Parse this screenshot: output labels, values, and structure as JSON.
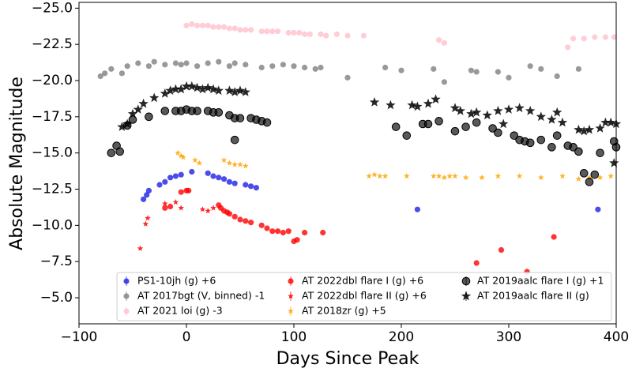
{
  "chart_data": {
    "type": "scatter",
    "x_label": "Days Since Peak",
    "y_label": "Absolute Magnitude",
    "xlim": [
      -100,
      400
    ],
    "ylim": [
      -25.4,
      -3.2
    ],
    "invert_y": true,
    "xticks": [
      {
        "value": -100,
        "label": "−100"
      },
      0,
      100,
      200,
      300,
      400
    ],
    "yticks": [
      {
        "value": -25,
        "label": "−25.0"
      },
      {
        "value": -22.5,
        "label": "−22.5"
      },
      {
        "value": -20,
        "label": "−20.0"
      },
      {
        "value": -17.5,
        "label": "−17.5"
      },
      {
        "value": -15,
        "label": "−15.0"
      },
      {
        "value": -12.5,
        "label": "−12.5"
      },
      {
        "value": -10,
        "label": "−10.0"
      },
      {
        "value": -7.5,
        "label": "−7.5"
      },
      {
        "value": -5,
        "label": "−5.0"
      }
    ],
    "legend": "lower center",
    "series": [
      {
        "name": "PS1-10jh (g) +6",
        "color": "#1f1fe6",
        "marker": "circle",
        "x": [
          -40,
          -37,
          -35,
          -25,
          -20,
          -15,
          -10,
          -5,
          5,
          20,
          25,
          30,
          35,
          40,
          45,
          55,
          60,
          65,
          215,
          383
        ],
        "values": [
          -11.8,
          -12.1,
          -12.4,
          -12.8,
          -13.0,
          -13.3,
          -13.4,
          -13.5,
          -13.7,
          -13.6,
          -13.4,
          -13.3,
          -13.2,
          -13.0,
          -12.9,
          -12.8,
          -12.7,
          -12.6,
          -11.1,
          -11.1
        ]
      },
      {
        "name": "AT 2017bgt (V, binned) -1",
        "color": "#808080",
        "marker": "circle",
        "x": [
          -80,
          -76,
          -70,
          -60,
          -55,
          -45,
          -35,
          -30,
          -20,
          -10,
          -5,
          0,
          10,
          20,
          30,
          40,
          45,
          55,
          70,
          80,
          90,
          100,
          110,
          120,
          125,
          150,
          185,
          200,
          230,
          240,
          265,
          270,
          290,
          300,
          320,
          330,
          345,
          365
        ],
        "values": [
          -20.3,
          -20.5,
          -20.8,
          -20.5,
          -21.0,
          -21.2,
          -21.0,
          -21.3,
          -21.1,
          -21.2,
          -21.1,
          -21.2,
          -21.0,
          -21.2,
          -21.3,
          -21.0,
          -21.2,
          -21.1,
          -20.9,
          -21.0,
          -21.1,
          -21.0,
          -20.9,
          -20.8,
          -20.9,
          -20.2,
          -20.9,
          -20.7,
          -20.8,
          -19.9,
          -20.7,
          -20.6,
          -20.6,
          -20.2,
          -21.0,
          -20.8,
          -20.3,
          -20.8
        ]
      },
      {
        "name": "AT 2021 loi (g) -3",
        "color": "#ffc0cb",
        "marker": "circle",
        "x": [
          0,
          5,
          10,
          15,
          20,
          25,
          30,
          35,
          40,
          45,
          50,
          55,
          60,
          70,
          75,
          80,
          85,
          95,
          100,
          105,
          110,
          115,
          125,
          130,
          140,
          150,
          165,
          235,
          240,
          355,
          360,
          370,
          380,
          390,
          398
        ],
        "values": [
          -23.8,
          -23.9,
          -23.8,
          -23.8,
          -23.8,
          -23.7,
          -23.7,
          -23.7,
          -23.6,
          -23.6,
          -23.5,
          -23.5,
          -23.5,
          -23.4,
          -23.4,
          -23.4,
          -23.4,
          -23.3,
          -23.3,
          -23.3,
          -23.2,
          -23.2,
          -23.2,
          -23.1,
          -23.2,
          -23.1,
          -23.1,
          -22.8,
          -22.6,
          -22.3,
          -22.9,
          -22.9,
          -23.0,
          -23.0,
          -23.0
        ]
      },
      {
        "name": "AT 2022dbl flare I (g) +6",
        "color": "#ff0000",
        "marker": "circle",
        "x": [
          -20,
          -15,
          -5,
          0,
          2,
          30,
          32,
          35,
          38,
          40,
          45,
          50,
          55,
          60,
          70,
          75,
          80,
          85,
          90,
          95,
          100,
          103,
          110,
          127,
          270,
          293,
          317,
          342
        ],
        "values": [
          -11.2,
          -11.3,
          -12.3,
          -12.4,
          -12.4,
          -11.4,
          -11.2,
          -11.0,
          -10.9,
          -10.8,
          -10.6,
          -10.4,
          -10.3,
          -10.2,
          -10.0,
          -9.8,
          -9.6,
          -9.6,
          -9.5,
          -9.6,
          -8.9,
          -9.0,
          -9.5,
          -9.5,
          -7.4,
          -8.3,
          -6.8,
          -9.2
        ]
      },
      {
        "name": "AT 2022dbl flare II (g) +6",
        "color": "#ff0000",
        "marker": "star-small",
        "x": [
          -43,
          -38,
          -36,
          -20,
          -10,
          -5,
          15,
          20,
          25
        ],
        "values": [
          -8.4,
          -10.1,
          -10.5,
          -11.5,
          -11.6,
          -11.2,
          -11.1,
          -11.0,
          -11.2
        ]
      },
      {
        "name": "AT 2018zr (g) +5",
        "color": "#ffa500",
        "marker": "star-small",
        "x": [
          -8,
          -5,
          -3,
          8,
          12,
          35,
          40,
          45,
          50,
          55,
          170,
          175,
          180,
          185,
          205,
          230,
          235,
          240,
          245,
          250,
          260,
          275,
          290,
          310,
          330,
          350,
          365,
          375,
          385,
          395
        ],
        "values": [
          -15.0,
          -14.8,
          -14.7,
          -14.5,
          -14.3,
          -14.5,
          -14.3,
          -14.2,
          -14.2,
          -14.1,
          -13.4,
          -13.5,
          -13.4,
          -13.4,
          -13.4,
          -13.4,
          -13.4,
          -13.3,
          -13.4,
          -13.4,
          -13.3,
          -13.3,
          -13.4,
          -13.4,
          -13.3,
          -13.4,
          -13.2,
          -13.3,
          -13.3,
          -13.4
        ]
      },
      {
        "name": "AT 2019aalc flare I (g) +1",
        "color": "#000000",
        "marker": "circle-large",
        "x": [
          -70,
          -65,
          -62,
          -55,
          -50,
          -35,
          -20,
          -10,
          -5,
          0,
          5,
          10,
          20,
          25,
          30,
          40,
          45,
          50,
          60,
          65,
          70,
          75,
          45,
          195,
          205,
          220,
          225,
          235,
          250,
          260,
          270,
          285,
          290,
          305,
          310,
          315,
          320,
          330,
          340,
          345,
          355,
          360,
          365,
          370,
          375,
          380,
          385,
          398,
          400
        ],
        "values": [
          -15.0,
          -15.5,
          -15.1,
          -16.9,
          -17.3,
          -17.5,
          -17.9,
          -17.9,
          -17.9,
          -18.0,
          -17.9,
          -17.9,
          -17.9,
          -17.8,
          -17.8,
          -17.6,
          -17.4,
          -17.4,
          -17.4,
          -17.3,
          -17.2,
          -17.1,
          -15.9,
          -16.8,
          -16.2,
          -17.0,
          -17.0,
          -17.2,
          -16.5,
          -16.8,
          -17.1,
          -16.7,
          -16.4,
          -16.2,
          -15.9,
          -15.8,
          -15.7,
          -15.9,
          -15.4,
          -16.2,
          -15.5,
          -15.4,
          -15.1,
          -13.6,
          -13.0,
          -13.5,
          -15.0,
          -15.8,
          -15.4
        ]
      },
      {
        "name": "AT 2019aalc flare II (g)",
        "color": "#000000",
        "marker": "star",
        "x": [
          -60,
          -55,
          -50,
          -45,
          -40,
          -30,
          -20,
          -15,
          -10,
          -5,
          0,
          5,
          10,
          15,
          20,
          25,
          30,
          40,
          45,
          50,
          55,
          175,
          190,
          210,
          215,
          225,
          232,
          250,
          255,
          265,
          270,
          280,
          290,
          295,
          300,
          310,
          320,
          330,
          340,
          345,
          350,
          365,
          370,
          375,
          385,
          390,
          395,
          398,
          400
        ],
        "values": [
          -16.8,
          -17.0,
          -17.7,
          -18.0,
          -18.4,
          -18.8,
          -19.1,
          -19.3,
          -19.4,
          -19.4,
          -19.6,
          -19.6,
          -19.5,
          -19.4,
          -19.5,
          -19.4,
          -19.3,
          -19.3,
          -19.2,
          -19.3,
          -19.2,
          -18.5,
          -18.3,
          -18.3,
          -18.2,
          -18.4,
          -18.7,
          -18.1,
          -17.9,
          -17.7,
          -17.8,
          -17.6,
          -17.9,
          -17.0,
          -18.0,
          -18.1,
          -17.9,
          -17.5,
          -17.3,
          -17.8,
          -17.1,
          -16.6,
          -16.5,
          -16.6,
          -16.7,
          -17.1,
          -17.1,
          -14.3,
          -17.0
        ]
      }
    ]
  }
}
